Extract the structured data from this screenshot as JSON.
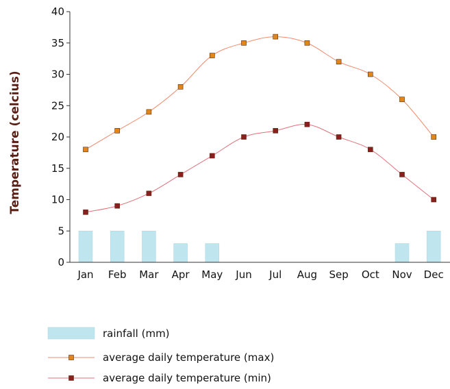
{
  "chart_data": {
    "type": "line",
    "categories": [
      "Jan",
      "Feb",
      "Mar",
      "Apr",
      "May",
      "Jun",
      "Jul",
      "Aug",
      "Sep",
      "Oct",
      "Nov",
      "Dec"
    ],
    "ylabel": "Temperature (celcius)",
    "ylim": [
      0,
      40
    ],
    "yticks": [
      "0",
      "5",
      "10",
      "15",
      "20",
      "25",
      "30",
      "35",
      "40"
    ],
    "grid": false,
    "legend_position": "bottom-left",
    "series": [
      {
        "name": "rainfall (mm)",
        "type": "bar",
        "color": "#bfe6ee",
        "values": [
          5,
          5,
          5,
          3,
          3,
          0,
          0,
          0,
          0,
          0,
          3,
          5
        ]
      },
      {
        "name": "average daily temperature (max)",
        "type": "line",
        "color": "#f08a6a",
        "marker_color": "#e0861a",
        "values": [
          18,
          21,
          24,
          28,
          33,
          35,
          36,
          35,
          32,
          30,
          26,
          20
        ]
      },
      {
        "name": "average daily temperature (min)",
        "type": "line",
        "color": "#e0707a",
        "marker_color": "#8a1f1f",
        "values": [
          8,
          9,
          11,
          14,
          17,
          20,
          21,
          22,
          20,
          18,
          14,
          10
        ]
      }
    ],
    "colors": {
      "axis": "#333333",
      "ylabel": "#5a1e14"
    }
  }
}
